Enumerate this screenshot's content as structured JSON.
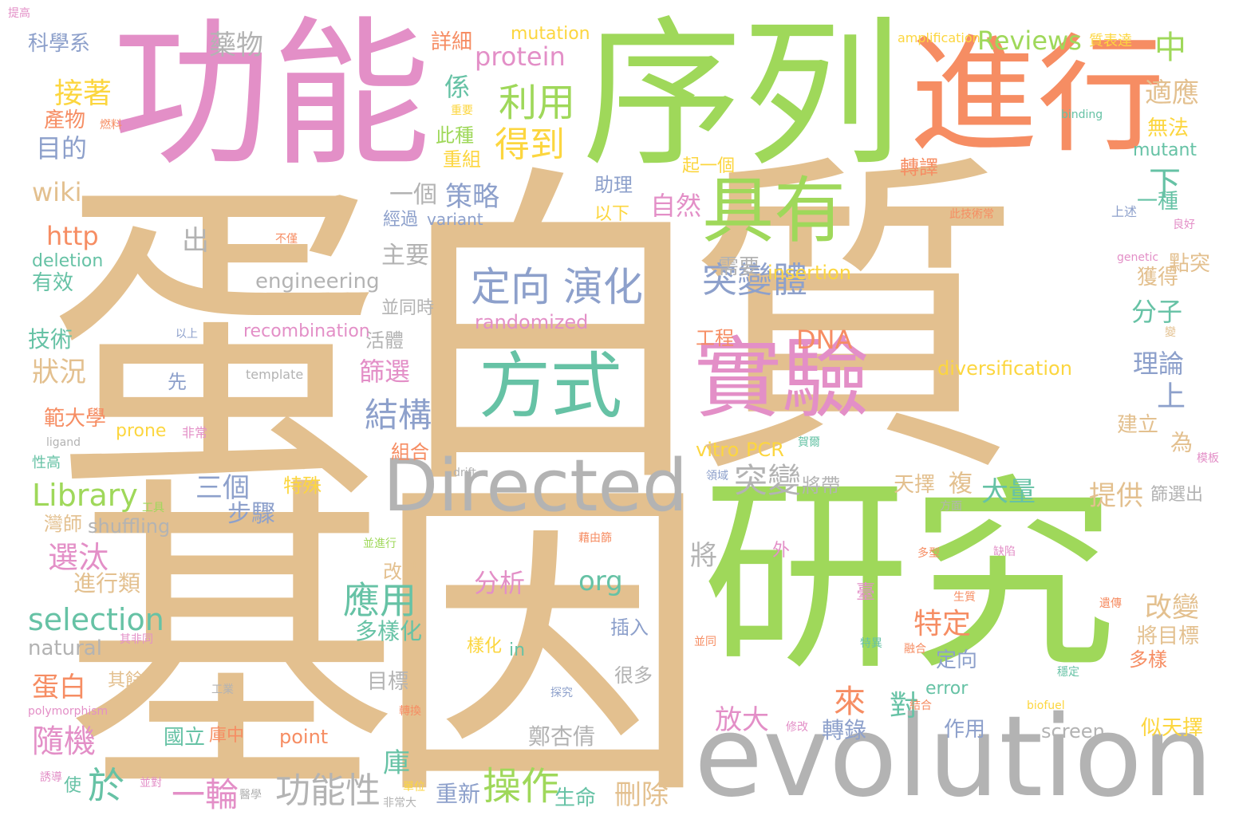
{
  "colors": {
    "tan": "#e3c08f",
    "green": "#9fd85a",
    "pink": "#e38fc7",
    "orange": "#f68d63",
    "blue": "#8da0cb",
    "teal": "#66c2a5",
    "yellow": "#fcd63f",
    "gray": "#b3b3b3"
  },
  "words": [
    {
      "t": "蛋",
      "c": "tan"
    },
    {
      "t": "白",
      "c": "tan"
    },
    {
      "t": "質",
      "c": "tan"
    },
    {
      "t": "基",
      "c": "tan"
    },
    {
      "t": "因",
      "c": "tan"
    },
    {
      "t": "研究",
      "c": "green"
    },
    {
      "t": "序列",
      "c": "green"
    },
    {
      "t": "功能",
      "c": "pink"
    },
    {
      "t": "進行",
      "c": "orange"
    },
    {
      "t": "evolution",
      "c": "gray"
    },
    {
      "t": "Directed",
      "c": "gray"
    },
    {
      "t": "實驗",
      "c": "pink"
    },
    {
      "t": "具有",
      "c": "green"
    },
    {
      "t": "方式",
      "c": "teal"
    },
    {
      "t": "定向 演化",
      "c": "blue"
    },
    {
      "t": "突變體",
      "c": "blue"
    },
    {
      "t": "利用",
      "c": "green"
    },
    {
      "t": "得到",
      "c": "yellow"
    },
    {
      "t": "protein",
      "c": "pink"
    },
    {
      "t": "Reviews",
      "c": "green"
    },
    {
      "t": "mutation",
      "c": "yellow"
    },
    {
      "t": "藥物",
      "c": "gray"
    },
    {
      "t": "詳細",
      "c": "orange"
    },
    {
      "t": "科學系",
      "c": "blue"
    },
    {
      "t": "接著",
      "c": "yellow"
    },
    {
      "t": "產物",
      "c": "orange"
    },
    {
      "t": "目的",
      "c": "blue"
    },
    {
      "t": "wiki",
      "c": "tan"
    },
    {
      "t": "http",
      "c": "orange"
    },
    {
      "t": "deletion",
      "c": "teal"
    },
    {
      "t": "有效",
      "c": "teal"
    },
    {
      "t": "技術",
      "c": "teal"
    },
    {
      "t": "狀況",
      "c": "tan"
    },
    {
      "t": "範大學",
      "c": "orange"
    },
    {
      "t": "Library",
      "c": "green"
    },
    {
      "t": "灣師",
      "c": "tan"
    },
    {
      "t": "shuffling",
      "c": "gray"
    },
    {
      "t": "選汰",
      "c": "pink"
    },
    {
      "t": "進行類",
      "c": "tan"
    },
    {
      "t": "selection",
      "c": "teal"
    },
    {
      "t": "natural",
      "c": "gray"
    },
    {
      "t": "蛋白",
      "c": "orange"
    },
    {
      "t": "polymorphism",
      "c": "pink"
    },
    {
      "t": "隨機",
      "c": "pink"
    },
    {
      "t": "於",
      "c": "teal"
    },
    {
      "t": "一輪",
      "c": "pink"
    },
    {
      "t": "功能性",
      "c": "gray"
    },
    {
      "t": "操作",
      "c": "green"
    },
    {
      "t": "生命",
      "c": "teal"
    },
    {
      "t": "刪除",
      "c": "tan"
    },
    {
      "t": "重新",
      "c": "blue"
    },
    {
      "t": "國立",
      "c": "teal"
    },
    {
      "t": "point",
      "c": "orange"
    },
    {
      "t": "鄭杏倩",
      "c": "gray"
    },
    {
      "t": "轉錄",
      "c": "blue"
    },
    {
      "t": "作用",
      "c": "blue"
    },
    {
      "t": "screen",
      "c": "gray"
    },
    {
      "t": "似天擇",
      "c": "yellow"
    },
    {
      "t": "放大",
      "c": "pink"
    },
    {
      "t": "對",
      "c": "teal"
    },
    {
      "t": "error",
      "c": "teal"
    },
    {
      "t": "定向",
      "c": "blue"
    },
    {
      "t": "特定",
      "c": "orange"
    },
    {
      "t": "改變",
      "c": "tan"
    },
    {
      "t": "將目標",
      "c": "tan"
    },
    {
      "t": "多樣",
      "c": "orange"
    },
    {
      "t": "應用",
      "c": "teal"
    },
    {
      "t": "分析",
      "c": "pink"
    },
    {
      "t": "org",
      "c": "teal"
    },
    {
      "t": "多樣化",
      "c": "teal"
    },
    {
      "t": "目標",
      "c": "gray"
    },
    {
      "t": "很多",
      "c": "gray"
    },
    {
      "t": "插入",
      "c": "blue"
    },
    {
      "t": "大量",
      "c": "teal"
    },
    {
      "t": "提供",
      "c": "tan"
    },
    {
      "t": "篩選出",
      "c": "gray"
    },
    {
      "t": "三個",
      "c": "blue"
    },
    {
      "t": "步驟",
      "c": "blue"
    },
    {
      "t": "特殊",
      "c": "yellow"
    },
    {
      "t": "突變",
      "c": "gray"
    },
    {
      "t": "將帶",
      "c": "gray"
    },
    {
      "t": "天擇",
      "c": "tan"
    },
    {
      "t": "結構",
      "c": "blue"
    },
    {
      "t": "篩選",
      "c": "pink"
    },
    {
      "t": "DNA",
      "c": "orange"
    },
    {
      "t": "工程",
      "c": "orange"
    },
    {
      "t": "vitro",
      "c": "yellow"
    },
    {
      "t": "PCR",
      "c": "yellow"
    },
    {
      "t": "diversification",
      "c": "yellow"
    },
    {
      "t": "分子",
      "c": "teal"
    },
    {
      "t": "理論",
      "c": "blue"
    },
    {
      "t": "上",
      "c": "blue"
    },
    {
      "t": "建立",
      "c": "tan"
    },
    {
      "t": "為",
      "c": "tan"
    },
    {
      "t": "獲得",
      "c": "tan"
    },
    {
      "t": "點突",
      "c": "tan"
    },
    {
      "t": "一種",
      "c": "teal"
    },
    {
      "t": "自然",
      "c": "pink"
    },
    {
      "t": "需要",
      "c": "gray"
    },
    {
      "t": "insertion",
      "c": "yellow"
    },
    {
      "t": "engineering",
      "c": "gray"
    },
    {
      "t": "主要",
      "c": "gray"
    },
    {
      "t": "randomized",
      "c": "pink"
    },
    {
      "t": "recombination",
      "c": "pink"
    },
    {
      "t": "活體",
      "c": "gray"
    },
    {
      "t": "並同時",
      "c": "gray"
    },
    {
      "t": "經過",
      "c": "blue"
    },
    {
      "t": "variant",
      "c": "blue"
    },
    {
      "t": "一個",
      "c": "gray"
    },
    {
      "t": "策略",
      "c": "blue"
    },
    {
      "t": "助理",
      "c": "blue"
    },
    {
      "t": "以下",
      "c": "yellow"
    },
    {
      "t": "起一個",
      "c": "yellow"
    },
    {
      "t": "轉譯",
      "c": "orange"
    },
    {
      "t": "係",
      "c": "teal"
    },
    {
      "t": "此種",
      "c": "green"
    },
    {
      "t": "重組",
      "c": "yellow"
    },
    {
      "t": "中",
      "c": "green"
    },
    {
      "t": "適應",
      "c": "tan"
    },
    {
      "t": "無法",
      "c": "yellow"
    },
    {
      "t": "mutant",
      "c": "teal"
    },
    {
      "t": "下",
      "c": "teal"
    },
    {
      "t": "出",
      "c": "gray"
    },
    {
      "t": "將",
      "c": "gray"
    },
    {
      "t": "來",
      "c": "orange"
    },
    {
      "t": "庫",
      "c": "teal"
    },
    {
      "t": "使",
      "c": "teal"
    },
    {
      "t": "複",
      "c": "tan"
    },
    {
      "t": "組合",
      "c": "orange"
    },
    {
      "t": "prone",
      "c": "yellow"
    },
    {
      "t": "改造",
      "c": "tan"
    },
    {
      "t": "in",
      "c": "teal"
    },
    {
      "t": "樣化",
      "c": "yellow"
    },
    {
      "t": "其餘",
      "c": "tan"
    },
    {
      "t": "先",
      "c": "blue"
    },
    {
      "t": "template",
      "c": "gray"
    },
    {
      "t": "amplification",
      "c": "yellow"
    },
    {
      "t": "質表達",
      "c": "yellow"
    },
    {
      "t": "binding",
      "c": "teal"
    },
    {
      "t": "genetic",
      "c": "pink"
    },
    {
      "t": "ligand",
      "c": "gray"
    },
    {
      "t": "性高",
      "c": "teal"
    },
    {
      "t": "外",
      "c": "pink"
    },
    {
      "t": "庫中",
      "c": "orange"
    },
    {
      "t": "此技術常",
      "c": "orange"
    },
    {
      "t": "上述",
      "c": "blue"
    },
    {
      "t": "良好",
      "c": "pink"
    },
    {
      "t": "以上",
      "c": "blue"
    },
    {
      "t": "非常",
      "c": "pink"
    },
    {
      "t": "工具",
      "c": "green"
    },
    {
      "t": "方面",
      "c": "gray"
    },
    {
      "t": "drift",
      "c": "gray"
    },
    {
      "t": "生質",
      "c": "orange"
    },
    {
      "t": "遺傳",
      "c": "orange"
    },
    {
      "t": "多型",
      "c": "orange"
    },
    {
      "t": "biofuel",
      "c": "yellow"
    },
    {
      "t": "工業",
      "c": "gray"
    },
    {
      "t": "其非同",
      "c": "pink"
    },
    {
      "t": "並進行",
      "c": "green"
    },
    {
      "t": "轉換",
      "c": "orange"
    },
    {
      "t": "醫學",
      "c": "gray"
    },
    {
      "t": "非常大",
      "c": "gray"
    },
    {
      "t": "單位",
      "c": "yellow"
    },
    {
      "t": "藉由篩",
      "c": "orange"
    },
    {
      "t": "不僅",
      "c": "orange"
    },
    {
      "t": "變",
      "c": "tan"
    },
    {
      "t": "臺",
      "c": "pink"
    },
    {
      "t": "並同",
      "c": "orange"
    },
    {
      "t": "燃料",
      "c": "orange"
    },
    {
      "t": "重要",
      "c": "yellow"
    },
    {
      "t": "並對",
      "c": "pink"
    },
    {
      "t": "誘導",
      "c": "pink"
    },
    {
      "t": "模板",
      "c": "pink"
    },
    {
      "t": "修改",
      "c": "pink"
    },
    {
      "t": "領域",
      "c": "blue"
    },
    {
      "t": "特異",
      "c": "teal"
    },
    {
      "t": "缺陷",
      "c": "pink"
    },
    {
      "t": "結合",
      "c": "orange"
    },
    {
      "t": "探究",
      "c": "blue"
    },
    {
      "t": "賀爾",
      "c": "teal"
    },
    {
      "t": "融合",
      "c": "orange"
    },
    {
      "t": "穩定",
      "c": "teal"
    },
    {
      "t": "提高",
      "c": "pink"
    }
  ]
}
